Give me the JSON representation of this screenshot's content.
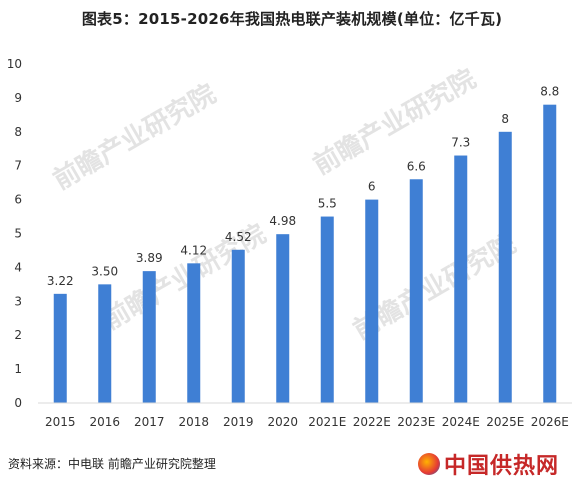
{
  "title": "图表5：2015-2026年我国热电联产装机规模(单位：亿千瓦)",
  "source": "资料来源：中电联 前瞻产业研究院整理",
  "footer_logo": "中国供热网",
  "watermark": "前瞻产业研究院",
  "colors": {
    "bar": "#3f7fd4",
    "axis": "#d9d9d9",
    "label": "#333333"
  },
  "chart_data": {
    "type": "bar",
    "title": "图表5：2015-2026年我国热电联产装机规模(单位：亿千瓦)",
    "categories": [
      "2015",
      "2016",
      "2017",
      "2018",
      "2019",
      "2020",
      "2021E",
      "2022E",
      "2023E",
      "2024E",
      "2025E",
      "2026E"
    ],
    "values": [
      3.22,
      3.5,
      3.89,
      4.12,
      4.52,
      4.98,
      5.5,
      6,
      6.6,
      7.3,
      8,
      8.8
    ],
    "value_labels": [
      "3.22",
      "3.50",
      "3.89",
      "4.12",
      "4.52",
      "4.98",
      "5.5",
      "6",
      "6.6",
      "7.3",
      "8",
      "8.8"
    ],
    "yticks": [
      "0",
      "1",
      "2",
      "3",
      "4",
      "5",
      "6",
      "7",
      "8",
      "9",
      "10"
    ],
    "ylim": [
      0,
      10
    ],
    "xlabel": "",
    "ylabel": "",
    "grid": false,
    "legend": "none"
  }
}
